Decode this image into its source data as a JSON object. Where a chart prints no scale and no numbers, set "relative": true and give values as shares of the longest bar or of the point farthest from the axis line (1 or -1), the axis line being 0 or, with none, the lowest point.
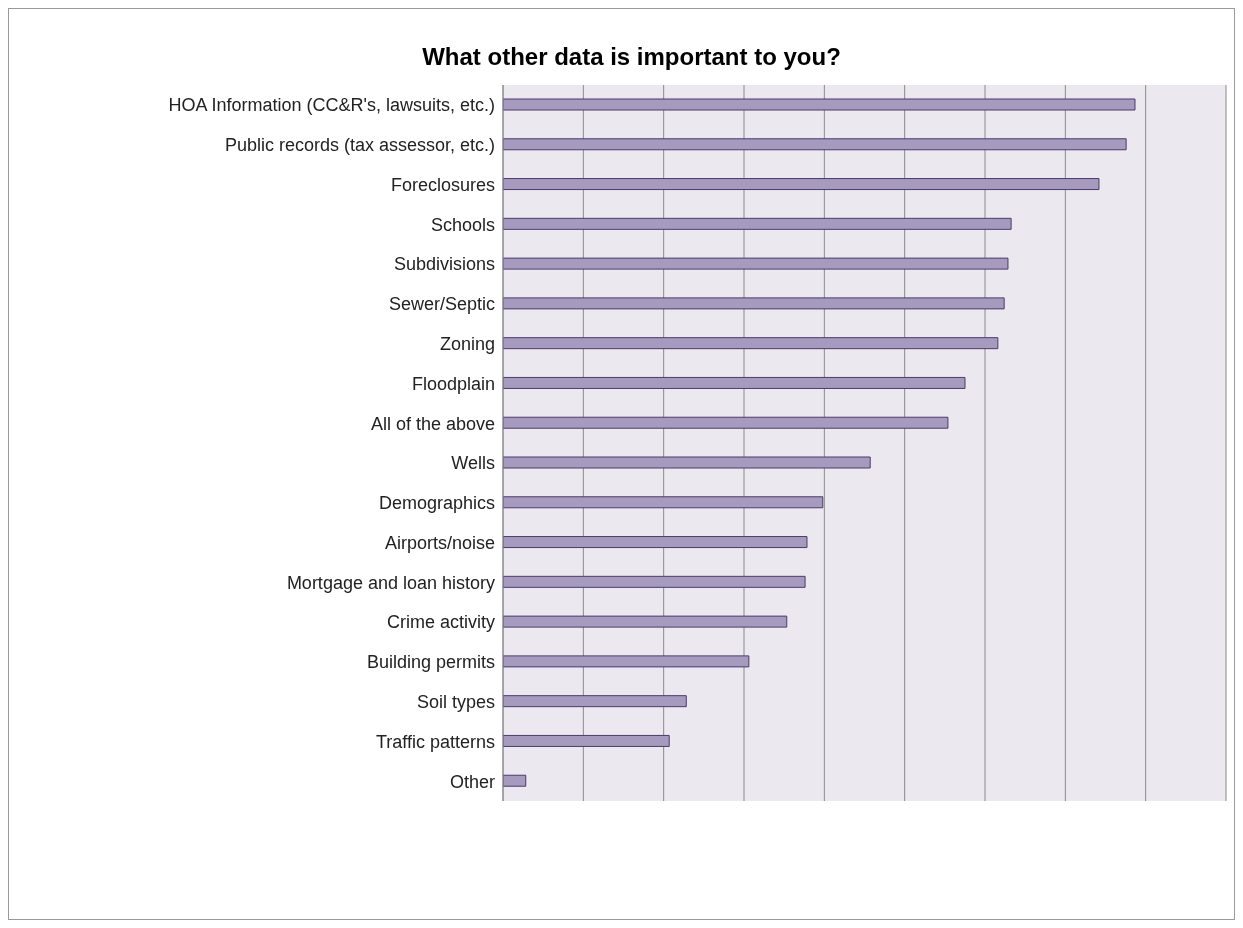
{
  "chart_data": {
    "type": "bar",
    "title": "What other data is important to you?",
    "orientation": "horizontal",
    "relative": true,
    "grid": "x",
    "categories": [
      "HOA Information (CC&R's, lawsuits, etc.)",
      "Public records (tax assessor, etc.)",
      "Foreclosures",
      "Schools",
      "Subdivisions",
      "Sewer/Septic",
      "Zoning",
      "Floodplain",
      "All of the above",
      "Wells",
      "Demographics",
      "Airports/noise",
      "Mortgage and loan history",
      "Crime activity",
      "Building permits",
      "Soil types",
      "Traffic patterns",
      "Other"
    ],
    "values": [
      1,
      0.986,
      0.943,
      0.804,
      0.799,
      0.793,
      0.783,
      0.731,
      0.704,
      0.581,
      0.506,
      0.481,
      0.478,
      0.449,
      0.389,
      0.29,
      0.263,
      0.036
    ],
    "color": "#a69bbf"
  }
}
